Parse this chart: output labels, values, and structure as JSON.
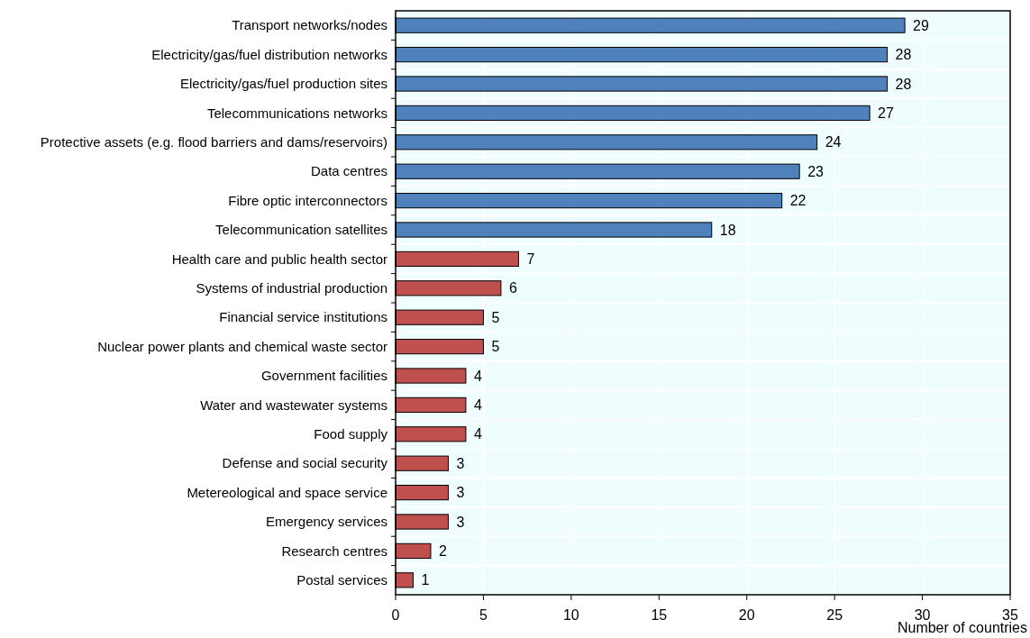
{
  "chart_data": {
    "type": "bar",
    "orientation": "horizontal",
    "xlabel": "Number of countries",
    "categories": [
      "Transport networks/nodes",
      "Electricity/gas/fuel distribution networks",
      "Electricity/gas/fuel production sites",
      "Telecommunications networks",
      "Protective assets (e.g. flood barriers and dams/reservoirs)",
      "Data centres",
      "Fibre optic interconnectors",
      "Telecommunication satellites",
      "Health care and public health sector",
      "Systems of industrial production ",
      "Financial service institutions",
      "Nuclear power plants and chemical waste sector",
      "Government facilities",
      "Water and wastewater systems ",
      "Food supply",
      "Defense and social security ",
      "Metereological and space service",
      "Emergency services",
      "Research centres",
      "Postal services"
    ],
    "values": [
      29,
      28,
      28,
      27,
      24,
      23,
      22,
      18,
      7,
      6,
      5,
      5,
      4,
      4,
      4,
      3,
      3,
      3,
      2,
      1
    ],
    "colors": [
      "#4f81bd",
      "#4f81bd",
      "#4f81bd",
      "#4f81bd",
      "#4f81bd",
      "#4f81bd",
      "#4f81bd",
      "#4f81bd",
      "#c0504d",
      "#c0504d",
      "#c0504d",
      "#c0504d",
      "#c0504d",
      "#c0504d",
      "#c0504d",
      "#c0504d",
      "#c0504d",
      "#c0504d",
      "#c0504d",
      "#c0504d"
    ],
    "xlim": [
      0,
      35
    ],
    "xticks": [
      0,
      5,
      10,
      15,
      20,
      25,
      30,
      35
    ],
    "grid": true,
    "data_labels": true
  }
}
